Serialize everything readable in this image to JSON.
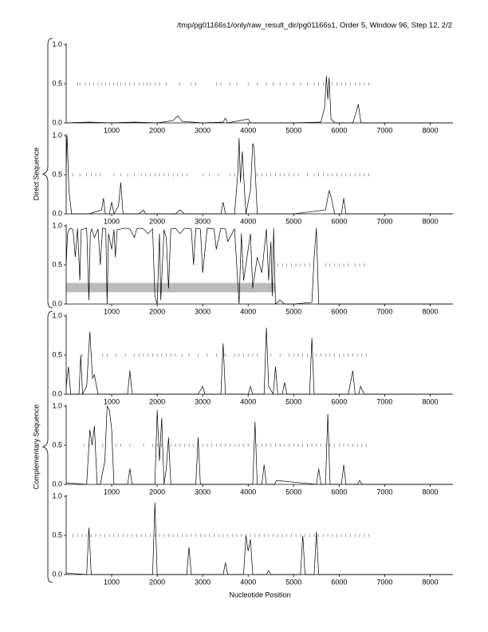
{
  "title": "/tmp/pg01166s1/only/raw_result_dir/pg01166s1, Order 5, Window 96, Step 12, 2/2",
  "x_label": "Nucleotide Position",
  "group_labels": [
    "Direct Sequence",
    "Complementary Sequence"
  ],
  "chart_data": [
    {
      "type": "line",
      "color": "#000000",
      "xlim": [
        0,
        8500
      ],
      "ylim": [
        0,
        1
      ],
      "xticks": [
        1000,
        2000,
        3000,
        4000,
        5000,
        6000,
        7000,
        8000
      ],
      "yticks": [
        {
          "value": 0,
          "label": "0.0"
        },
        {
          "value": 0.5,
          "label": "0.5"
        },
        {
          "value": 1,
          "label": "1.0"
        }
      ],
      "x": [
        0,
        500,
        1000,
        1500,
        2000,
        2350,
        2450,
        2550,
        3000,
        3450,
        3500,
        3550,
        4000,
        4050,
        4600,
        5000,
        5600,
        5680,
        5720,
        5750,
        5780,
        5820,
        5900,
        6300,
        6380,
        6420,
        6480,
        7000,
        8500
      ],
      "values": [
        0,
        0.01,
        0,
        0.01,
        0,
        0.03,
        0.09,
        0.02,
        0,
        0.01,
        0.06,
        0,
        0.05,
        0,
        0,
        0,
        0.01,
        0.2,
        0.6,
        0.3,
        0.58,
        0.05,
        0,
        0,
        0.15,
        0.24,
        0,
        0,
        0
      ],
      "marks_y": 0.5,
      "marks_x": [
        250,
        300,
        420,
        520,
        600,
        700,
        780,
        870,
        950,
        1050,
        1130,
        1200,
        1300,
        1400,
        1500,
        1600,
        1700,
        1780,
        1850,
        1950,
        2050,
        2200,
        2500,
        2750,
        2850,
        3300,
        3400,
        3600,
        3750,
        4000,
        4200,
        4400,
        4550,
        4700,
        4850,
        5000,
        5150,
        5300,
        5450,
        5550,
        5650,
        5850,
        5950,
        6050,
        6150,
        6250,
        6350,
        6450,
        6550,
        6650
      ]
    },
    {
      "type": "line",
      "color": "#000000",
      "xlim": [
        0,
        8500
      ],
      "ylim": [
        0,
        1
      ],
      "xticks": [
        1000,
        2000,
        3000,
        4000,
        5000,
        6000,
        7000,
        8000
      ],
      "yticks": [
        {
          "value": 0,
          "label": "0.0"
        },
        {
          "value": 0.5,
          "label": "0.5"
        },
        {
          "value": 1,
          "label": "1.0"
        }
      ],
      "x": [
        0,
        20,
        60,
        120,
        500,
        780,
        820,
        860,
        950,
        1000,
        1050,
        1150,
        1200,
        1250,
        1600,
        1700,
        1750,
        2400,
        2500,
        2600,
        3400,
        3450,
        3500,
        3700,
        3770,
        3800,
        3830,
        3870,
        3950,
        4050,
        4100,
        4130,
        4200,
        5000,
        5700,
        5780,
        5830,
        5900,
        6050,
        6100,
        6150,
        7000,
        8500
      ],
      "values": [
        0.6,
        1.0,
        0.3,
        0,
        0,
        0.05,
        0.2,
        0,
        0,
        0.15,
        0,
        0.1,
        0.4,
        0,
        0,
        0.05,
        0,
        0,
        0.05,
        0,
        0,
        0.15,
        0,
        0,
        0.5,
        0.97,
        0.4,
        0.8,
        0,
        0.3,
        0.9,
        0.85,
        0,
        0,
        0.05,
        0.3,
        0.2,
        0,
        0,
        0.2,
        0,
        0,
        0
      ],
      "marks_y": 0.5,
      "marks_x": [
        150,
        300,
        450,
        550,
        650,
        750,
        1050,
        1200,
        1350,
        1500,
        1650,
        1750,
        1850,
        1950,
        2050,
        2150,
        2250,
        2350,
        2450,
        2550,
        2650,
        3000,
        3150,
        3350,
        3600,
        3700,
        3900,
        4200,
        4300,
        4400,
        4500,
        4600,
        4700,
        4800,
        4900,
        5000,
        5100,
        5300,
        5450,
        5550,
        5650,
        5750,
        5850,
        5950,
        6050,
        6150,
        6250,
        6350,
        6450,
        6550,
        6650
      ]
    },
    {
      "type": "line",
      "color": "#000000",
      "xlim": [
        0,
        8500
      ],
      "ylim": [
        0,
        1
      ],
      "xticks": [
        1000,
        2000,
        3000,
        4000,
        5000,
        6000,
        7000,
        8000
      ],
      "yticks": [
        {
          "value": 0,
          "label": "0.0"
        },
        {
          "value": 0.5,
          "label": "0.5"
        },
        {
          "value": 1,
          "label": "1.0"
        }
      ],
      "x": [
        0,
        30,
        60,
        100,
        150,
        200,
        250,
        300,
        330,
        380,
        450,
        500,
        530,
        560,
        620,
        700,
        750,
        800,
        870,
        900,
        930,
        1000,
        1050,
        1080,
        1120,
        1200,
        1300,
        1400,
        1500,
        1550,
        1600,
        1700,
        1800,
        1900,
        1950,
        2000,
        2050,
        2080,
        2150,
        2200,
        2250,
        2300,
        2400,
        2500,
        2600,
        2750,
        2800,
        2850,
        2950,
        3000,
        3100,
        3250,
        3300,
        3400,
        3500,
        3550,
        3700,
        3800,
        3850,
        3900,
        4000,
        4050,
        4100,
        4200,
        4300,
        4400,
        4450,
        4500,
        4530,
        4560,
        4600,
        4700,
        4800,
        5000,
        5400,
        5450,
        5500,
        5550,
        5600,
        6000,
        8500
      ],
      "values": [
        0.5,
        0.9,
        0.95,
        0.97,
        0.95,
        0.6,
        0.97,
        0.3,
        0.95,
        0.96,
        0.97,
        0.05,
        0.9,
        0.96,
        0.85,
        0.96,
        0.5,
        0.97,
        0.96,
        0,
        0.9,
        0.7,
        0.95,
        0.6,
        0.95,
        0.96,
        0.97,
        0.96,
        0.85,
        0.96,
        0.97,
        0.96,
        0.9,
        0.96,
        0.1,
        0,
        0.9,
        0.05,
        0.95,
        0.85,
        0.2,
        0.96,
        0.97,
        0.9,
        0.97,
        0.96,
        0.5,
        0.97,
        0.96,
        0.4,
        0.97,
        0.96,
        0.7,
        0.97,
        0.96,
        0.8,
        0.96,
        0,
        0.9,
        0.3,
        0.7,
        0.9,
        0.2,
        0.6,
        0.4,
        0.96,
        0.3,
        0.8,
        0.1,
        0.97,
        0,
        0.05,
        0,
        0,
        0.02,
        0.6,
        0.97,
        0,
        0,
        0,
        0
      ],
      "marks_y": 0.5,
      "marks_x": [
        4650,
        4750,
        4850,
        4950,
        5050,
        5150,
        5250,
        5350,
        5700,
        5800,
        5900,
        6000,
        6100,
        6200,
        6350,
        6450,
        6550
      ],
      "highlight": {
        "x": [
          0,
          4600
        ],
        "y": [
          0.15,
          0.27
        ],
        "color": "#bbbbbb"
      }
    },
    {
      "type": "line",
      "color": "#000000",
      "xlim": [
        0,
        8500
      ],
      "ylim": [
        0,
        1
      ],
      "xticks": [
        1000,
        2000,
        3000,
        4000,
        5000,
        6000,
        7000,
        8000
      ],
      "yticks": [
        {
          "value": 0,
          "label": "0.0"
        },
        {
          "value": 0.5,
          "label": "0.5"
        },
        {
          "value": 1,
          "label": "1.0"
        }
      ],
      "x": [
        0,
        50,
        100,
        280,
        320,
        360,
        450,
        520,
        580,
        620,
        700,
        1350,
        1400,
        1450,
        2900,
        3000,
        3050,
        3400,
        3450,
        3500,
        4000,
        4050,
        4100,
        4350,
        4400,
        4450,
        4550,
        4600,
        4650,
        4750,
        4800,
        4850,
        5350,
        5400,
        5450,
        6200,
        6300,
        6350,
        6430,
        6470,
        6550,
        8500
      ],
      "values": [
        0.1,
        0.35,
        0,
        0,
        0.5,
        0,
        0.1,
        0.8,
        0.2,
        0.25,
        0,
        0,
        0.3,
        0,
        0,
        0.1,
        0,
        0,
        0.65,
        0,
        0,
        0.1,
        0,
        0,
        0.85,
        0.1,
        0,
        0.35,
        0,
        0,
        0.15,
        0,
        0,
        0.72,
        0,
        0,
        0.3,
        0,
        0,
        0.1,
        0,
        0
      ],
      "marks_y": 0.5,
      "marks_x": [
        350,
        550,
        800,
        900,
        1100,
        1300,
        1500,
        1600,
        1700,
        1800,
        1900,
        2000,
        2100,
        2200,
        2300,
        2400,
        2550,
        2700,
        2900,
        3100,
        3300,
        3500,
        3700,
        3800,
        3900,
        4000,
        4100,
        4200,
        4500,
        4700,
        4900,
        5000,
        5100,
        5200,
        5300,
        5500,
        5600,
        5700,
        5800,
        5900,
        6000,
        6100,
        6200,
        6300,
        6400,
        6500,
        6600
      ]
    },
    {
      "type": "line",
      "color": "#000000",
      "xlim": [
        0,
        8500
      ],
      "ylim": [
        0,
        1
      ],
      "xticks": [
        1000,
        2000,
        3000,
        4000,
        5000,
        6000,
        7000,
        8000
      ],
      "yticks": [
        {
          "value": 0,
          "label": "0.0"
        },
        {
          "value": 0.5,
          "label": "0.5"
        },
        {
          "value": 1,
          "label": "1.0"
        }
      ],
      "x": [
        0,
        450,
        520,
        570,
        620,
        680,
        750,
        850,
        900,
        950,
        1000,
        1050,
        1350,
        1400,
        1450,
        1950,
        2000,
        2050,
        2100,
        2150,
        2200,
        2250,
        2300,
        2850,
        2900,
        2950,
        4100,
        4150,
        4200,
        4300,
        4350,
        4400,
        4580,
        4620,
        5500,
        5550,
        5600,
        5700,
        5750,
        5800,
        6050,
        6100,
        6150,
        6400,
        6450,
        6500,
        8500
      ],
      "values": [
        0.02,
        0,
        0.7,
        0.5,
        0.75,
        0,
        0,
        0.3,
        1.0,
        0.95,
        0.7,
        0,
        0,
        0.2,
        0,
        0,
        0.95,
        0.3,
        0.85,
        0,
        0.2,
        0.6,
        0,
        0,
        0.6,
        0,
        0,
        0.8,
        0,
        0,
        0.25,
        0,
        0,
        0.05,
        0,
        0.2,
        0,
        0,
        0.9,
        0,
        0,
        0.25,
        0,
        0,
        0.05,
        0,
        0
      ],
      "marks_y": 0.5,
      "marks_x": [
        400,
        500,
        800,
        1100,
        1200,
        1400,
        1700,
        1900,
        2000,
        2100,
        2300,
        2400,
        2500,
        2600,
        2700,
        2800,
        3000,
        3100,
        3200,
        3300,
        3400,
        3500,
        3600,
        3700,
        3800,
        3900,
        4000,
        4200,
        4300,
        4400,
        4500,
        4600,
        4700,
        4800,
        4900,
        5000,
        5100,
        5200,
        5300,
        5400,
        5500,
        5600,
        5700,
        5800,
        5900,
        6000,
        6100,
        6200,
        6300,
        6400,
        6500,
        6600
      ]
    },
    {
      "type": "line",
      "color": "#000000",
      "xlim": [
        0,
        8500
      ],
      "ylim": [
        0,
        1
      ],
      "xticks": [
        1000,
        2000,
        3000,
        4000,
        5000,
        6000,
        7000,
        8000
      ],
      "yticks": [
        {
          "value": 0,
          "label": "0.0"
        },
        {
          "value": 0.5,
          "label": "0.5"
        },
        {
          "value": 1,
          "label": "1.0"
        }
      ],
      "x": [
        0,
        450,
        500,
        550,
        1900,
        1950,
        2000,
        2650,
        2700,
        2750,
        3450,
        3500,
        3550,
        3900,
        3950,
        4000,
        4050,
        4100,
        4400,
        4450,
        4500,
        5150,
        5200,
        5250,
        5450,
        5500,
        5550,
        8500
      ],
      "values": [
        0.02,
        0,
        0.6,
        0,
        0,
        0.92,
        0,
        0,
        0.35,
        0,
        0,
        0.15,
        0,
        0,
        0.5,
        0.3,
        0.45,
        0,
        0,
        0.05,
        0,
        0,
        0.5,
        0,
        0,
        0.55,
        0,
        0
      ],
      "marks_y": 0.5,
      "marks_x": [
        150,
        250,
        350,
        450,
        550,
        650,
        750,
        850,
        950,
        1050,
        1150,
        1250,
        1350,
        1450,
        1550,
        1650,
        1750,
        1850,
        1950,
        2050,
        2150,
        2250,
        2350,
        2450,
        2550,
        2650,
        2750,
        2850,
        2950,
        3050,
        3150,
        3250,
        3350,
        3450,
        3550,
        3650,
        3750,
        3850,
        3950,
        4050,
        4150,
        4250,
        4350,
        4450,
        4550,
        4650,
        4750,
        4850,
        4950,
        5050,
        5150,
        5250,
        5350,
        5450,
        5550,
        5650,
        5750,
        5850,
        5950,
        6050,
        6150,
        6250,
        6350,
        6450,
        6550,
        6650
      ]
    }
  ]
}
